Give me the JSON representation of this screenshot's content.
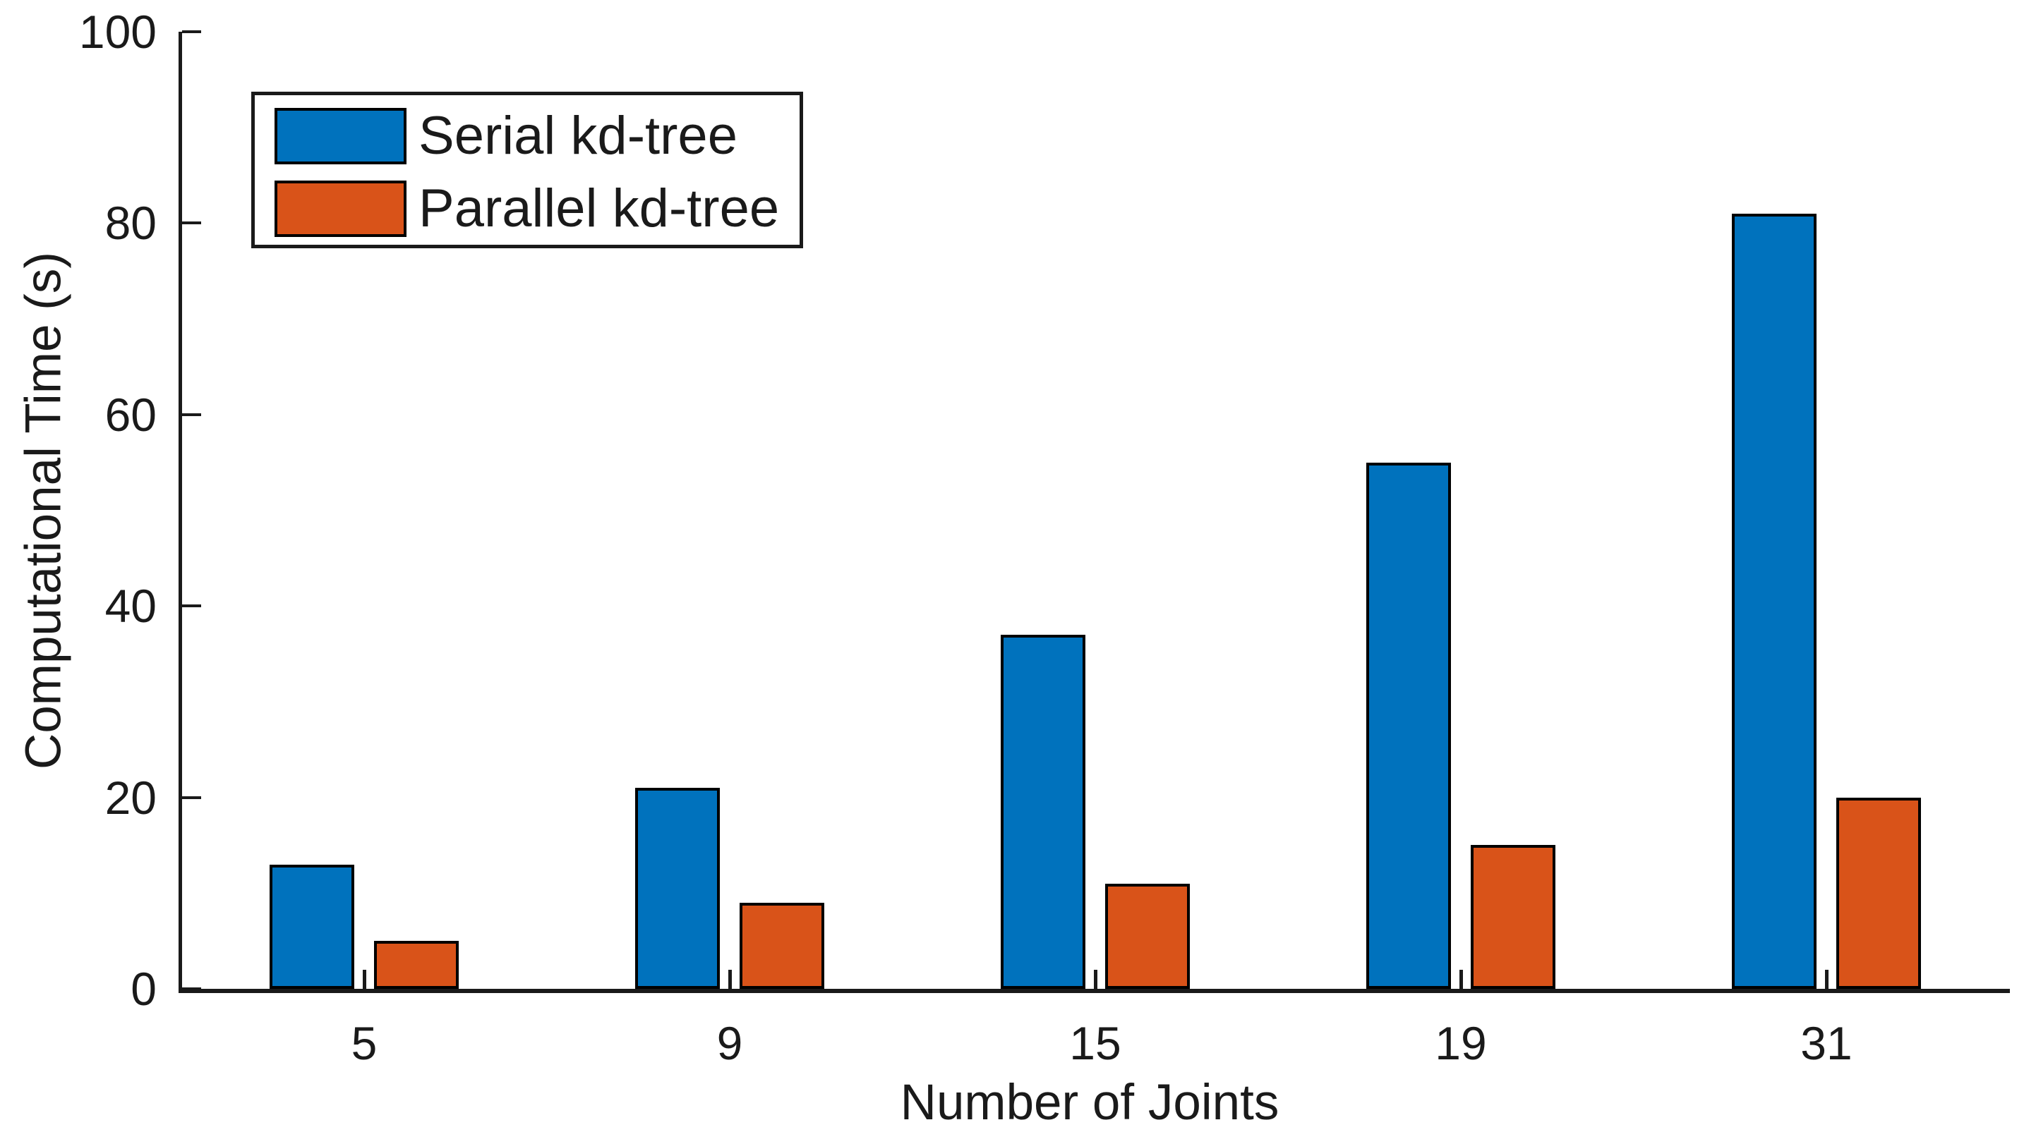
{
  "chart_data": {
    "type": "bar",
    "categories": [
      "5",
      "9",
      "15",
      "19",
      "31"
    ],
    "series": [
      {
        "name": "Serial kd-tree",
        "color": "#0072BD",
        "values": [
          13,
          21,
          37,
          55,
          81
        ]
      },
      {
        "name": "Parallel kd-tree",
        "color": "#D95319",
        "values": [
          5,
          9,
          11,
          15,
          20
        ]
      }
    ],
    "title": "",
    "xlabel": "Number of Joints",
    "ylabel": "Computational Time (s)",
    "ylim": [
      0,
      100
    ],
    "yticks": [
      0,
      20,
      40,
      60,
      80,
      100
    ],
    "grid": false,
    "legend_position": "top-left",
    "bar_edge_color": "#000000",
    "axis_color": "#1a1a1a",
    "background_color": "#ffffff"
  }
}
